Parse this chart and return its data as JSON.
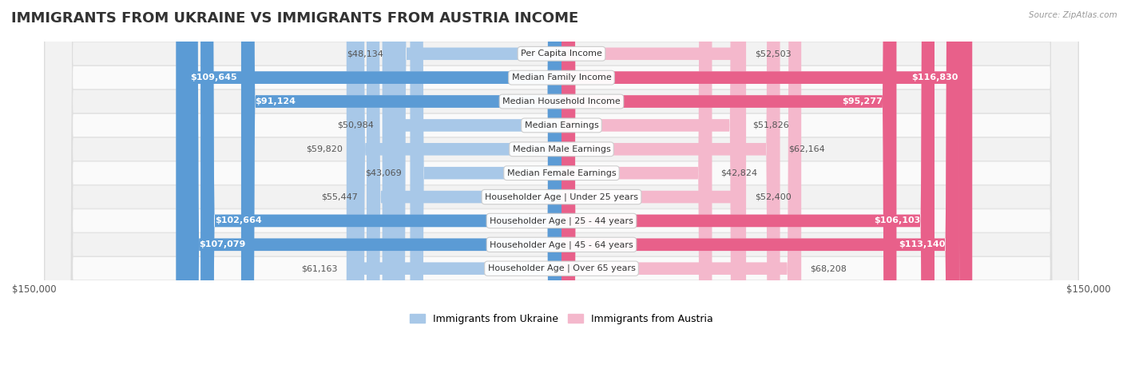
{
  "title": "IMMIGRANTS FROM UKRAINE VS IMMIGRANTS FROM AUSTRIA INCOME",
  "source": "Source: ZipAtlas.com",
  "categories": [
    "Per Capita Income",
    "Median Family Income",
    "Median Household Income",
    "Median Earnings",
    "Median Male Earnings",
    "Median Female Earnings",
    "Householder Age | Under 25 years",
    "Householder Age | 25 - 44 years",
    "Householder Age | 45 - 64 years",
    "Householder Age | Over 65 years"
  ],
  "ukraine_values": [
    48134,
    109645,
    91124,
    50984,
    59820,
    43069,
    55447,
    102664,
    107079,
    61163
  ],
  "austria_values": [
    52503,
    116830,
    95277,
    51826,
    62164,
    42824,
    52400,
    106103,
    113140,
    68208
  ],
  "ukraine_labels": [
    "$48,134",
    "$109,645",
    "$91,124",
    "$50,984",
    "$59,820",
    "$43,069",
    "$55,447",
    "$102,664",
    "$107,079",
    "$61,163"
  ],
  "austria_labels": [
    "$52,503",
    "$116,830",
    "$95,277",
    "$51,826",
    "$62,164",
    "$42,824",
    "$52,400",
    "$106,103",
    "$113,140",
    "$68,208"
  ],
  "ukraine_color_light": "#a8c8e8",
  "ukraine_color_dark": "#5b9bd5",
  "austria_color_light": "#f4b8cc",
  "austria_color_dark": "#e8608a",
  "max_value": 150000,
  "bar_height": 0.52,
  "row_bg_odd": "#f2f2f2",
  "row_bg_even": "#fafafa",
  "title_fontsize": 13,
  "label_fontsize": 8.0,
  "category_fontsize": 8.0,
  "legend_fontsize": 9,
  "axis_fontsize": 8.5,
  "ukraine_threshold": 70000,
  "austria_threshold": 70000
}
